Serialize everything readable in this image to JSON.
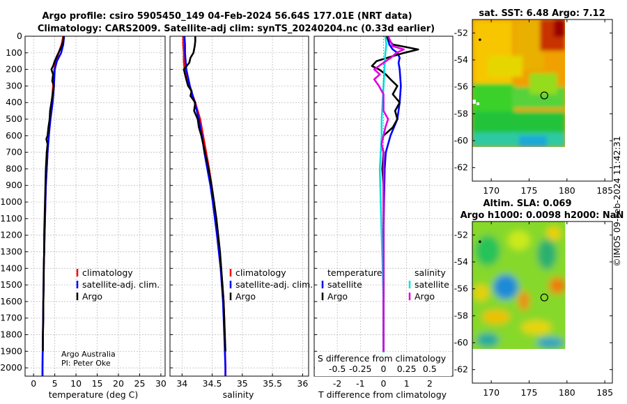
{
  "title": {
    "line1": "Argo profile: csiro 5905450_149 04-Feb-2024 56.64S 177.01E (NRT data)",
    "line2": "Climatology: CARS2009. Satellite-adj clim: synTS_20240204.nc (0.33d earlier)"
  },
  "footer": {
    "org": "Argo Australia",
    "pi": "PI: Peter Oke",
    "watermark": "©IMOS 09-Feb-2024 11:42:31"
  },
  "colors": {
    "climatology": "#ff0000",
    "satellite": "#0000ff",
    "argo": "#000000",
    "sat_s": "#00e0e0",
    "argo_s": "#e000e0"
  },
  "chart_data": [
    {
      "type": "line",
      "panel": "temperature",
      "xlabel": "temperature (deg C)",
      "xlim": [
        -2,
        31
      ],
      "ylim": [
        2050,
        0
      ],
      "xticks": [
        "0",
        "5",
        "10",
        "15",
        "20",
        "25",
        "30"
      ],
      "yticks": [
        "0",
        "100",
        "200",
        "300",
        "400",
        "500",
        "600",
        "700",
        "800",
        "900",
        "1000",
        "1100",
        "1200",
        "1300",
        "1400",
        "1500",
        "1600",
        "1700",
        "1800",
        "1900",
        "2000"
      ],
      "legend": {
        "position": "lower-right",
        "entries": [
          "climatology",
          "satellite-adj. clim.",
          "Argo"
        ]
      },
      "series": [
        {
          "name": "climatology",
          "color": "#ff0000",
          "depth": [
            0,
            50,
            100,
            150,
            200,
            300,
            400,
            500,
            600,
            700,
            800,
            900,
            1000,
            1200,
            1400,
            1600,
            1800,
            2000,
            2050
          ],
          "values": [
            7.0,
            6.6,
            5.9,
            5.3,
            4.9,
            4.6,
            4.3,
            3.9,
            3.6,
            3.3,
            3.1,
            2.9,
            2.8,
            2.6,
            2.4,
            2.3,
            2.2,
            2.1,
            2.1
          ]
        },
        {
          "name": "satellite-adj. clim.",
          "color": "#0000ff",
          "depth": [
            0,
            50,
            100,
            150,
            200,
            300,
            400,
            500,
            600,
            700,
            800,
            900,
            1000,
            1200,
            1400,
            1600,
            1800,
            2000,
            2050
          ],
          "values": [
            7.2,
            7.0,
            6.5,
            5.5,
            5.0,
            4.8,
            4.5,
            4.0,
            3.6,
            3.3,
            3.1,
            2.9,
            2.8,
            2.6,
            2.4,
            2.3,
            2.2,
            2.1,
            2.1
          ]
        },
        {
          "name": "Argo",
          "color": "#000000",
          "depth": [
            0,
            30,
            60,
            90,
            120,
            150,
            180,
            200,
            230,
            270,
            300,
            350,
            400,
            450,
            500,
            550,
            600,
            620,
            650,
            700,
            800,
            900,
            1000,
            1100,
            1200,
            1300,
            1400,
            1500,
            1600,
            1700,
            1800,
            1850,
            1900
          ],
          "values": [
            7.1,
            7.0,
            6.6,
            6.1,
            5.5,
            5.0,
            4.6,
            4.2,
            4.6,
            4.4,
            4.8,
            4.5,
            4.2,
            3.9,
            3.8,
            3.5,
            3.3,
            3.0,
            3.3,
            3.1,
            2.9,
            2.8,
            2.7,
            2.6,
            2.5,
            2.5,
            2.4,
            2.4,
            2.3,
            2.3,
            2.2,
            2.2,
            2.2
          ]
        }
      ]
    },
    {
      "type": "line",
      "panel": "salinity",
      "xlabel": "salinity",
      "xlim": [
        33.8,
        36.1
      ],
      "ylim": [
        2050,
        0
      ],
      "xticks": [
        "34",
        "34.5",
        "35",
        "35.5",
        "36"
      ],
      "legend": {
        "position": "lower-right",
        "entries": [
          "climatology",
          "satellite-adj. clim.",
          "Argo"
        ]
      },
      "series": [
        {
          "name": "climatology",
          "color": "#ff0000",
          "depth": [
            0,
            50,
            100,
            150,
            200,
            250,
            300,
            400,
            500,
            600,
            700,
            800,
            900,
            1000,
            1200,
            1400,
            1600,
            1800,
            2000,
            2050
          ],
          "values": [
            34.02,
            34.02,
            34.03,
            34.03,
            34.04,
            34.08,
            34.12,
            34.22,
            34.3,
            34.35,
            34.4,
            34.45,
            34.49,
            34.53,
            34.6,
            34.65,
            34.69,
            34.71,
            34.72,
            34.72
          ]
        },
        {
          "name": "satellite-adj. clim.",
          "color": "#0000ff",
          "depth": [
            0,
            50,
            100,
            150,
            200,
            250,
            300,
            400,
            500,
            600,
            700,
            800,
            900,
            1000,
            1200,
            1400,
            1600,
            1800,
            2000,
            2050
          ],
          "values": [
            34.04,
            34.05,
            34.05,
            34.06,
            34.07,
            34.1,
            34.13,
            34.21,
            34.28,
            34.33,
            34.37,
            34.42,
            34.47,
            34.51,
            34.58,
            34.64,
            34.68,
            34.7,
            34.72,
            34.72
          ]
        },
        {
          "name": "Argo",
          "color": "#000000",
          "depth": [
            0,
            30,
            60,
            100,
            130,
            160,
            200,
            230,
            260,
            300,
            330,
            360,
            400,
            450,
            500,
            550,
            600,
            650,
            700,
            800,
            900,
            1000,
            1100,
            1200,
            1300,
            1400,
            1500,
            1600,
            1700,
            1800,
            1900
          ],
          "values": [
            34.22,
            34.22,
            34.21,
            34.19,
            34.14,
            34.12,
            34.03,
            34.05,
            34.07,
            34.1,
            34.16,
            34.14,
            34.22,
            34.2,
            34.26,
            34.28,
            34.32,
            34.35,
            34.38,
            34.44,
            34.49,
            34.53,
            34.57,
            34.6,
            34.63,
            34.65,
            34.67,
            34.69,
            34.7,
            34.71,
            34.72
          ]
        }
      ]
    },
    {
      "type": "line",
      "panel": "difference",
      "xlabel": "T difference from climatology",
      "top_label": "S difference from climatology",
      "xlim": [
        -3,
        3
      ],
      "ylim": [
        2050,
        0
      ],
      "xticks": [
        "-2",
        "-1",
        "0",
        "1",
        "2"
      ],
      "top_ticks": [
        "-0.5",
        "-0.25",
        "0",
        "0.25",
        "0.5"
      ],
      "legend": {
        "position": "lower-center",
        "headers": [
          "temperature",
          "salinity"
        ],
        "temperature": [
          "satellite",
          "Argo"
        ],
        "salinity": [
          "satellite",
          "Argo"
        ]
      },
      "series": [
        {
          "name": "T satellite",
          "color": "#0000ff",
          "depth": [
            0,
            50,
            80,
            100,
            130,
            160,
            200,
            300,
            400,
            500,
            600,
            700,
            800,
            1000,
            1200,
            1400,
            1600,
            1800,
            2000,
            2050
          ],
          "values": [
            0.15,
            0.25,
            0.4,
            0.6,
            0.7,
            0.65,
            0.7,
            0.75,
            0.7,
            0.6,
            0.3,
            0.1,
            0.05,
            0.02,
            0.0,
            0.0,
            0.0,
            0.0,
            0.0,
            0.0
          ]
        },
        {
          "name": "T Argo",
          "color": "#000000",
          "depth": [
            0,
            50,
            80,
            100,
            120,
            150,
            180,
            200,
            230,
            260,
            300,
            350,
            400,
            450,
            500,
            550,
            600,
            650,
            700,
            800,
            900,
            1000,
            1200,
            1400,
            1600,
            1800,
            1900
          ],
          "values": [
            0.1,
            0.4,
            1.5,
            0.9,
            0.4,
            -0.3,
            -0.5,
            -0.2,
            0.1,
            0.3,
            0.6,
            0.4,
            0.7,
            0.5,
            0.6,
            0.4,
            0.0,
            -0.1,
            0.0,
            -0.05,
            0.0,
            0.0,
            0.0,
            0.0,
            0.0,
            0.0,
            0.0
          ]
        },
        {
          "name": "S satellite",
          "color": "#00e0e0",
          "depth": [
            0,
            50,
            100,
            200,
            300,
            400,
            500,
            600,
            700,
            800,
            1000,
            1200,
            1400,
            1600,
            1800,
            2000
          ],
          "values": [
            0.02,
            0.03,
            0.02,
            0.01,
            0.0,
            -0.01,
            -0.02,
            -0.02,
            -0.03,
            -0.04,
            -0.03,
            -0.02,
            -0.01,
            0.0,
            0.0,
            0.0
          ]
        },
        {
          "name": "S Argo",
          "color": "#e000e0",
          "depth": [
            0,
            60,
            80,
            100,
            130,
            160,
            200,
            230,
            260,
            300,
            350,
            400,
            450,
            500,
            550,
            600,
            650,
            700,
            800,
            900,
            1000,
            1200,
            1400,
            1600,
            1800,
            1900
          ],
          "values": [
            0.05,
            0.1,
            0.22,
            0.14,
            0.08,
            0.0,
            -0.1,
            -0.04,
            -0.1,
            -0.05,
            0.0,
            0.0,
            0.0,
            0.05,
            0.02,
            0.0,
            -0.02,
            0.0,
            0.0,
            0.0,
            0.0,
            0.0,
            0.0,
            0.0,
            0.0,
            0.0
          ]
        }
      ]
    },
    {
      "type": "heatmap",
      "panel": "sst_map",
      "title": "sat. SST: 6.48 Argo: 7.12",
      "xlim": [
        167.5,
        186
      ],
      "ylim": [
        -63,
        -51
      ],
      "xticks": [
        "170",
        "175",
        "180",
        "185"
      ],
      "yticks": [
        "-52",
        "-54",
        "-56",
        "-58",
        "-60",
        "-62"
      ],
      "profile": {
        "lon": 177.01,
        "lat": -56.64
      },
      "start_point": {
        "lon": 168.5,
        "lat": -52.5
      },
      "data_extent": {
        "lon": [
          167.5,
          180.2
        ],
        "lat": [
          -60.3,
          -51
        ]
      }
    },
    {
      "type": "heatmap",
      "panel": "sla_map",
      "title": "Altim. SLA: 0.069",
      "subtitle": "Argo h1000: 0.0098 h2000: NaN",
      "xlim": [
        167.5,
        186
      ],
      "ylim": [
        -63,
        -51
      ],
      "xticks": [
        "170",
        "175",
        "180",
        "185"
      ],
      "yticks": [
        "-52",
        "-54",
        "-56",
        "-58",
        "-60",
        "-62"
      ],
      "profile": {
        "lon": 177.01,
        "lat": -56.64
      },
      "start_point": {
        "lon": 168.5,
        "lat": -52.5
      },
      "data_extent": {
        "lon": [
          167.5,
          180.2
        ],
        "lat": [
          -60.3,
          -51
        ]
      }
    }
  ]
}
